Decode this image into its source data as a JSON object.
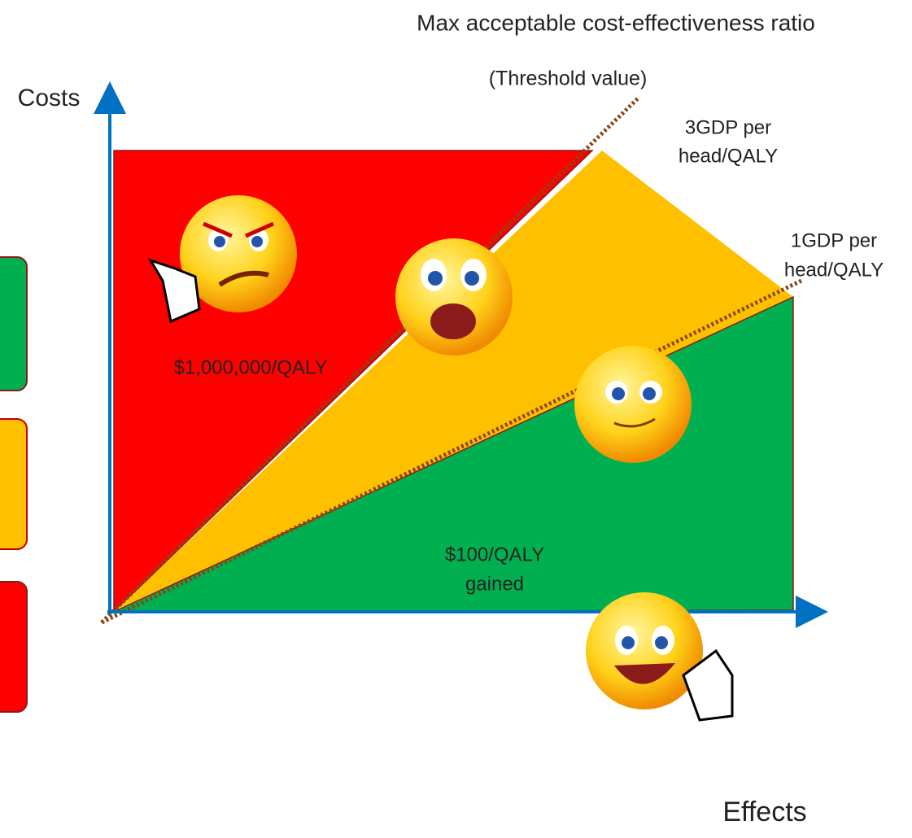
{
  "title": "Max acceptable cost-effectiveness ratio",
  "subtitle": "(Threshold value)",
  "axes": {
    "y_label": "Costs",
    "x_label": "Effects"
  },
  "thresholds": [
    {
      "lines": [
        "3GDP per",
        "head/QALY"
      ]
    },
    {
      "lines": [
        "1GDP per",
        "head/QALY"
      ]
    }
  ],
  "regions": {
    "red_label": "$1,000,000/QALY",
    "green_label": [
      "$100/QALY",
      "gained"
    ]
  }
}
